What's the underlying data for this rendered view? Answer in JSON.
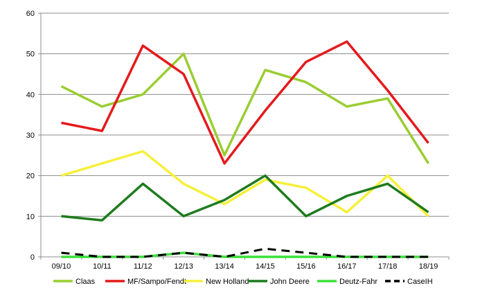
{
  "chart_data": {
    "type": "line",
    "title": "",
    "xlabel": "",
    "ylabel": "",
    "categories": [
      "09/10",
      "10/11",
      "11/12",
      "12/13",
      "13/14",
      "14/15",
      "15/16",
      "16/17",
      "17/18",
      "18/19"
    ],
    "ylim": [
      0,
      60
    ],
    "yticks": [
      0,
      10,
      20,
      30,
      40,
      50,
      60
    ],
    "grid": true,
    "legend_position": "bottom",
    "series": [
      {
        "name": "Claas",
        "color": "#9ACD32",
        "dashed": false,
        "values": [
          42,
          37,
          40,
          50,
          25,
          46,
          43,
          37,
          39,
          23
        ]
      },
      {
        "name": "MF/Sampo/Fendt",
        "color": "#E41A1C",
        "dashed": false,
        "values": [
          33,
          31,
          52,
          45,
          23,
          36,
          48,
          53,
          41,
          28
        ]
      },
      {
        "name": "New Holland",
        "color": "#F5F03A",
        "dashed": false,
        "values": [
          20,
          23,
          26,
          18,
          13,
          19,
          17,
          11,
          20,
          10
        ]
      },
      {
        "name": "John Deere",
        "color": "#1E7B1E",
        "dashed": false,
        "values": [
          10,
          9,
          18,
          10,
          14,
          20,
          10,
          15,
          18,
          11
        ]
      },
      {
        "name": "Deutz-Fahr",
        "color": "#3BE03B",
        "dashed": false,
        "values": [
          0,
          0,
          0,
          1,
          0,
          0,
          0,
          0,
          0,
          0
        ]
      },
      {
        "name": "CaseIH",
        "color": "#000000",
        "dashed": true,
        "values": [
          1,
          0,
          0,
          1,
          0,
          2,
          1,
          0,
          0,
          0
        ]
      }
    ]
  }
}
